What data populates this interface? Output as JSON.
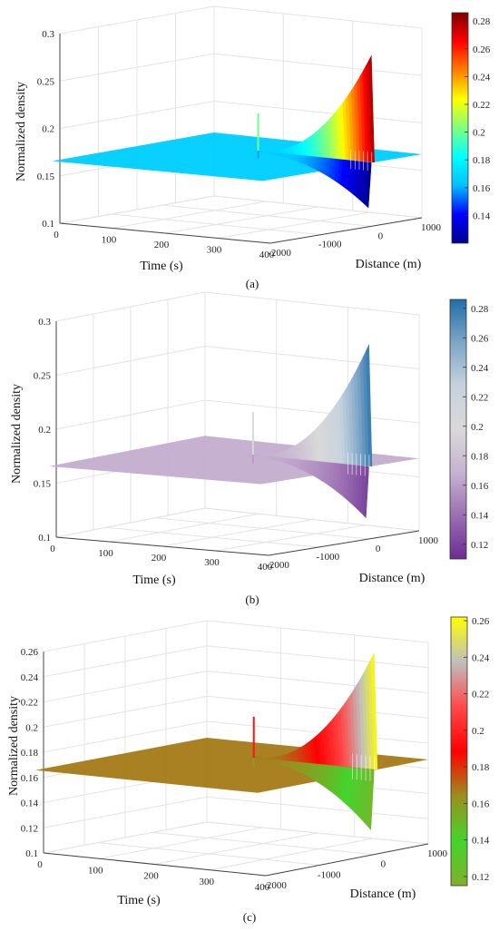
{
  "chart_data": [
    {
      "type": "surface",
      "panel_label": "(a)",
      "colormap": "jet",
      "xlabel": "Time (s)",
      "ylabel": "Distance (m)",
      "zlabel": "Normalized density",
      "x_ticks": [
        "0",
        "100",
        "200",
        "300",
        "400"
      ],
      "y_ticks": [
        "-2000",
        "-1000",
        "0",
        "1000"
      ],
      "z_ticks": [
        "0.1",
        "0.15",
        "0.2",
        "0.25",
        "0.3"
      ],
      "xlim": [
        0,
        400
      ],
      "ylim": [
        -2000,
        1000
      ],
      "zlim": [
        0.1,
        0.3
      ],
      "colorbar_ticks": [
        "0.14",
        "0.16",
        "0.18",
        "0.2",
        "0.22",
        "0.24",
        "0.26",
        "0.28"
      ],
      "colorbar_range": [
        0.12,
        0.286
      ],
      "base_density": 0.167,
      "peak_density": 0.28,
      "trough_density": 0.12,
      "grid": true
    },
    {
      "type": "surface",
      "panel_label": "(b)",
      "colormap": "purple-grey-blue",
      "xlabel": "Time (s)",
      "ylabel": "Distance (m)",
      "zlabel": "Normalized density",
      "x_ticks": [
        "0",
        "100",
        "200",
        "300",
        "400"
      ],
      "y_ticks": [
        "-2000",
        "-1000",
        "0",
        "1000"
      ],
      "z_ticks": [
        "0.1",
        "0.15",
        "0.2",
        "0.25",
        "0.3"
      ],
      "xlim": [
        0,
        400
      ],
      "ylim": [
        -2000,
        1000
      ],
      "zlim": [
        0.1,
        0.3
      ],
      "colorbar_ticks": [
        "0.12",
        "0.14",
        "0.16",
        "0.18",
        "0.2",
        "0.22",
        "0.24",
        "0.26",
        "0.28"
      ],
      "colorbar_range": [
        0.11,
        0.286
      ],
      "base_density": 0.167,
      "peak_density": 0.28,
      "trough_density": 0.12,
      "grid": true
    },
    {
      "type": "surface",
      "panel_label": "(c)",
      "colormap": "green-red-yellow",
      "xlabel": "Time (s)",
      "ylabel": "Distance (m)",
      "zlabel": "Normalized density",
      "x_ticks": [
        "0",
        "100",
        "200",
        "300",
        "400"
      ],
      "y_ticks": [
        "-2000",
        "-1000",
        "0",
        "1000"
      ],
      "z_ticks": [
        "0.1",
        "0.12",
        "0.14",
        "0.16",
        "0.18",
        "0.2",
        "0.22",
        "0.24",
        "0.26"
      ],
      "xlim": [
        0,
        400
      ],
      "ylim": [
        -2000,
        1000
      ],
      "zlim": [
        0.1,
        0.26
      ],
      "colorbar_ticks": [
        "0.12",
        "0.14",
        "0.16",
        "0.18",
        "0.2",
        "0.22",
        "0.24",
        "0.26"
      ],
      "colorbar_range": [
        0.115,
        0.262
      ],
      "base_density": 0.167,
      "peak_density": 0.26,
      "trough_density": 0.12,
      "grid": true
    }
  ],
  "colormaps": {
    "jet": [
      "#00008f",
      "#0000ff",
      "#00bfff",
      "#00ffff",
      "#7fff7f",
      "#ffff00",
      "#ff7f00",
      "#ff0000",
      "#800000"
    ],
    "purple-grey-blue": [
      "#6a2c91",
      "#9b6fb3",
      "#c7b2d2",
      "#d9d9d9",
      "#c7d2de",
      "#7ea6c8",
      "#1f6ea8"
    ],
    "green-red-yellow": [
      "#7fb02b",
      "#44d42c",
      "#9a8f1f",
      "#ff0000",
      "#ff4a4a",
      "#bfbfbf",
      "#ffff00"
    ]
  }
}
